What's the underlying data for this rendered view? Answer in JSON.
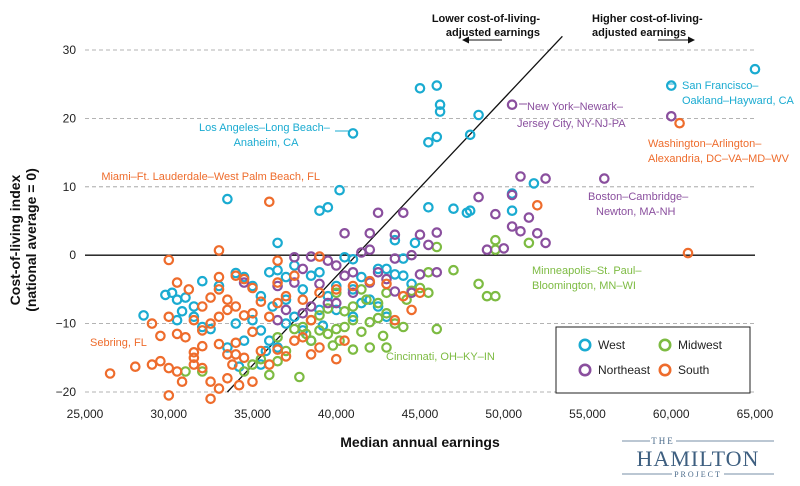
{
  "chart_data": {
    "type": "scatter",
    "xlabel": "Median annual earnings",
    "ylabel_line1": "Cost-of-living index",
    "ylabel_line2": "(national average = 0)",
    "xlim": [
      25000,
      65000
    ],
    "ylim": [
      -22,
      33
    ],
    "x_ticks": [
      25000,
      30000,
      35000,
      40000,
      45000,
      50000,
      55000,
      60000,
      65000
    ],
    "x_tick_labels": [
      "25,000",
      "30,000",
      "35,000",
      "40,000",
      "45,000",
      "50,000",
      "55,000",
      "60,000",
      "65,000"
    ],
    "y_ticks": [
      -20,
      -10,
      0,
      10,
      20,
      30
    ],
    "y_tick_labels": [
      "−20",
      "−10",
      "0",
      "10",
      "20",
      "30"
    ],
    "grid": "horizontal dashed",
    "reference_line": {
      "from": [
        33500,
        -20
      ],
      "to": [
        53500,
        32
      ]
    },
    "arrow_labels": {
      "lower_line1": "Lower cost-of-living-",
      "lower_line2": "adjusted earnings",
      "higher_line1": "Higher cost-of-living-",
      "higher_line2": "adjusted earnings"
    },
    "legend": {
      "placement": "bottom-right",
      "items": [
        {
          "name": "West",
          "color": "#1aabd1"
        },
        {
          "name": "Midwest",
          "color": "#7dbb42"
        },
        {
          "name": "Northeast",
          "color": "#8a4f9e"
        },
        {
          "name": "South",
          "color": "#ee6c2c"
        }
      ]
    },
    "annotations": [
      {
        "lines": [
          "San Francisco–",
          "Oakland–Hayward, CA"
        ],
        "color": "#1aabd1"
      },
      {
        "lines": [
          "Los Angeles–Long Beach–",
          "Anaheim, CA"
        ],
        "color": "#1aabd1"
      },
      {
        "lines": [
          "New York–Newark–",
          "Jersey City, NY-NJ-PA"
        ],
        "color": "#8a4f9e"
      },
      {
        "lines": [
          "Washington–Arlington–",
          "Alexandria, DC–VA–MD–WV"
        ],
        "color": "#ee6c2c"
      },
      {
        "lines": [
          "Miami–Ft. Lauderdale–West Palm Beach, FL"
        ],
        "color": "#ee6c2c"
      },
      {
        "lines": [
          "Boston–Cambridge–",
          "Newton, MA-NH"
        ],
        "color": "#8a4f9e"
      },
      {
        "lines": [
          "Minneapolis–St. Paul–",
          "Bloomington, MN–WI"
        ],
        "color": "#7dbb42"
      },
      {
        "lines": [
          "Sebring, FL"
        ],
        "color": "#ee6c2c"
      },
      {
        "lines": [
          "Cincinnati, OH–KY–IN"
        ],
        "color": "#7dbb42"
      }
    ],
    "series": [
      {
        "name": "West",
        "color": "#1aabd1",
        "points": [
          [
            60000,
            24.8
          ],
          [
            65000,
            27.2
          ],
          [
            41000,
            17.8
          ],
          [
            45000,
            24.4
          ],
          [
            46000,
            24.8
          ],
          [
            46200,
            22
          ],
          [
            46200,
            21
          ],
          [
            45500,
            16.5
          ],
          [
            46000,
            17.3
          ],
          [
            48000,
            17.6
          ],
          [
            48500,
            20.5
          ],
          [
            40200,
            9.5
          ],
          [
            39500,
            7
          ],
          [
            39000,
            6.5
          ],
          [
            33500,
            8.2
          ],
          [
            45500,
            7
          ],
          [
            47000,
            6.8
          ],
          [
            47800,
            6.2
          ],
          [
            48000,
            6.5
          ],
          [
            50500,
            9
          ],
          [
            50500,
            6.5
          ],
          [
            51800,
            10.5
          ],
          [
            36500,
            1.8
          ],
          [
            40500,
            -0.3
          ],
          [
            41000,
            -0.6
          ],
          [
            43500,
            2.2
          ],
          [
            44700,
            1.8
          ],
          [
            44000,
            -0.5
          ],
          [
            43000,
            -2
          ],
          [
            28500,
            -8.8
          ],
          [
            29800,
            -5.8
          ],
          [
            30200,
            -5.5
          ],
          [
            30500,
            -6.5
          ],
          [
            31000,
            -6.2
          ],
          [
            31500,
            -7.5
          ],
          [
            30800,
            -8.2
          ],
          [
            30500,
            -9.5
          ],
          [
            31500,
            -9
          ],
          [
            32000,
            -3.8
          ],
          [
            32500,
            -10.8
          ],
          [
            32000,
            -10.5
          ],
          [
            33000,
            -4.5
          ],
          [
            34000,
            -2.6
          ],
          [
            34500,
            -3.2
          ],
          [
            35000,
            -4.5
          ],
          [
            35500,
            -6
          ],
          [
            36000,
            -2.5
          ],
          [
            36500,
            -2.2
          ],
          [
            37000,
            -3.2
          ],
          [
            37500,
            -1.5
          ],
          [
            38000,
            -5
          ],
          [
            38500,
            -3
          ],
          [
            39000,
            -2.5
          ],
          [
            39500,
            -6
          ],
          [
            40000,
            -4.5
          ],
          [
            41000,
            -5
          ],
          [
            41500,
            -3.2
          ],
          [
            42000,
            -6.5
          ],
          [
            42500,
            -2
          ],
          [
            43500,
            -2.8
          ],
          [
            44000,
            -3
          ],
          [
            44500,
            -4.2
          ],
          [
            35000,
            -9.5
          ],
          [
            35500,
            -11
          ],
          [
            36000,
            -12.5
          ],
          [
            36500,
            -13.5
          ],
          [
            35800,
            -14
          ],
          [
            37000,
            -10
          ],
          [
            37500,
            -9
          ],
          [
            38000,
            -11
          ],
          [
            38500,
            -12.5
          ],
          [
            39200,
            -10.3
          ],
          [
            40000,
            -8
          ],
          [
            41000,
            -9
          ],
          [
            41500,
            -7
          ],
          [
            42500,
            -7.5
          ],
          [
            43000,
            -9
          ],
          [
            34000,
            -10
          ],
          [
            33500,
            -13.5
          ],
          [
            34200,
            -16.3
          ],
          [
            35500,
            -16
          ],
          [
            34500,
            -12.5
          ],
          [
            39000,
            -8
          ],
          [
            37000,
            -6.5
          ],
          [
            36200,
            -7.5
          ]
        ]
      },
      {
        "name": "Midwest",
        "color": "#7dbb42",
        "points": [
          [
            51500,
            1.8
          ],
          [
            49500,
            2.2
          ],
          [
            49500,
            0.8
          ],
          [
            46000,
            1.2
          ],
          [
            45500,
            -2.5
          ],
          [
            47000,
            -2.2
          ],
          [
            48500,
            -4.2
          ],
          [
            49000,
            -6
          ],
          [
            49500,
            -6
          ],
          [
            46000,
            -10.8
          ],
          [
            31000,
            -17
          ],
          [
            32000,
            -17
          ],
          [
            34500,
            -17
          ],
          [
            36000,
            -17.5
          ],
          [
            37800,
            -17.8
          ],
          [
            35000,
            -16
          ],
          [
            35500,
            -15.2
          ],
          [
            36500,
            -15.5
          ],
          [
            37000,
            -14
          ],
          [
            38500,
            -12.5
          ],
          [
            39000,
            -11
          ],
          [
            39500,
            -11.5
          ],
          [
            40000,
            -10.8
          ],
          [
            40500,
            -10.5
          ],
          [
            41500,
            -11.2
          ],
          [
            40200,
            -12.5
          ],
          [
            39800,
            -13.2
          ],
          [
            41000,
            -13.8
          ],
          [
            42000,
            -13.5
          ],
          [
            43000,
            -13.5
          ],
          [
            43500,
            -10
          ],
          [
            44000,
            -10.5
          ],
          [
            41000,
            -9.5
          ],
          [
            42000,
            -9.8
          ],
          [
            42500,
            -9.2
          ],
          [
            43000,
            -8.5
          ],
          [
            42500,
            -7
          ],
          [
            41800,
            -6.5
          ],
          [
            41000,
            -7.5
          ],
          [
            40500,
            -8.2
          ],
          [
            39500,
            -7.8
          ],
          [
            38500,
            -9.5
          ],
          [
            38000,
            -10.5
          ],
          [
            37500,
            -10.8
          ],
          [
            38200,
            -11.5
          ],
          [
            40000,
            -5.5
          ],
          [
            41500,
            -5
          ],
          [
            43000,
            -5.5
          ],
          [
            44500,
            -5.2
          ],
          [
            45000,
            -4.8
          ],
          [
            45500,
            -5.5
          ],
          [
            44200,
            -6.5
          ],
          [
            36500,
            -12
          ],
          [
            39000,
            -8.8
          ],
          [
            42800,
            -11.8
          ]
        ]
      },
      {
        "name": "Northeast",
        "color": "#8a4f9e",
        "points": [
          [
            50500,
            22
          ],
          [
            60000,
            20.3
          ],
          [
            56000,
            11.2
          ],
          [
            51000,
            11.5
          ],
          [
            52500,
            11.2
          ],
          [
            50500,
            8.8
          ],
          [
            48500,
            8.5
          ],
          [
            49500,
            6
          ],
          [
            51500,
            5.5
          ],
          [
            50500,
            4.2
          ],
          [
            51000,
            3.5
          ],
          [
            52000,
            3.2
          ],
          [
            52500,
            1.8
          ],
          [
            50000,
            1
          ],
          [
            49000,
            0.8
          ],
          [
            42500,
            6.2
          ],
          [
            44000,
            6.2
          ],
          [
            40500,
            3.2
          ],
          [
            42000,
            3.2
          ],
          [
            43500,
            3
          ],
          [
            45000,
            3
          ],
          [
            46000,
            3.3
          ],
          [
            45500,
            1.5
          ],
          [
            44500,
            0
          ],
          [
            43500,
            -0.5
          ],
          [
            42000,
            0.8
          ],
          [
            41500,
            0.4
          ],
          [
            37500,
            -0.3
          ],
          [
            38500,
            -0.2
          ],
          [
            39500,
            -0.8
          ],
          [
            40000,
            -1.5
          ],
          [
            40500,
            -3
          ],
          [
            41000,
            -2.5
          ],
          [
            42000,
            -4
          ],
          [
            43000,
            -3.5
          ],
          [
            43500,
            -5.3
          ],
          [
            44500,
            -5.5
          ],
          [
            45000,
            -2.8
          ],
          [
            46000,
            -2.5
          ],
          [
            42500,
            -2.5
          ],
          [
            38000,
            -2
          ],
          [
            39000,
            -4.2
          ],
          [
            37500,
            -4
          ],
          [
            36500,
            -4.5
          ],
          [
            39500,
            -7
          ],
          [
            38500,
            -7.5
          ],
          [
            37000,
            -8
          ],
          [
            36500,
            -9.5
          ],
          [
            38000,
            -8.5
          ],
          [
            40000,
            -7
          ],
          [
            41000,
            -5.5
          ],
          [
            34500,
            -4
          ]
        ]
      },
      {
        "name": "South",
        "color": "#ee6c2c",
        "points": [
          [
            60500,
            19.3
          ],
          [
            61000,
            0.3
          ],
          [
            36000,
            7.8
          ],
          [
            52000,
            7.3
          ],
          [
            33000,
            0.7
          ],
          [
            30000,
            -0.7
          ],
          [
            34500,
            -3.5
          ],
          [
            36500,
            -0.8
          ],
          [
            39000,
            -0.2
          ],
          [
            26500,
            -17.3
          ],
          [
            28000,
            -16.3
          ],
          [
            29000,
            -16
          ],
          [
            29500,
            -15.5
          ],
          [
            30000,
            -16.5
          ],
          [
            30500,
            -17
          ],
          [
            30800,
            -18.5
          ],
          [
            30000,
            -20.5
          ],
          [
            31500,
            -16
          ],
          [
            31500,
            -15
          ],
          [
            32000,
            -16.5
          ],
          [
            32500,
            -18.5
          ],
          [
            33500,
            -18
          ],
          [
            32500,
            -21
          ],
          [
            33000,
            -19.5
          ],
          [
            33800,
            -16
          ],
          [
            34200,
            -19
          ],
          [
            35000,
            -18.5
          ],
          [
            34500,
            -15
          ],
          [
            34000,
            -14.5
          ],
          [
            31500,
            -14.2
          ],
          [
            32000,
            -13.3
          ],
          [
            33000,
            -13
          ],
          [
            33500,
            -14.5
          ],
          [
            34000,
            -12.8
          ],
          [
            35000,
            -11.2
          ],
          [
            35500,
            -14
          ],
          [
            36000,
            -16
          ],
          [
            36500,
            -13.8
          ],
          [
            37000,
            -14.8
          ],
          [
            37500,
            -12.5
          ],
          [
            38000,
            -12
          ],
          [
            38500,
            -14.5
          ],
          [
            39000,
            -13.5
          ],
          [
            40000,
            -15.2
          ],
          [
            40500,
            -12.5
          ],
          [
            29500,
            -11.8
          ],
          [
            30500,
            -11.5
          ],
          [
            31000,
            -12
          ],
          [
            32000,
            -11
          ],
          [
            32500,
            -10
          ],
          [
            33000,
            -9
          ],
          [
            33500,
            -8
          ],
          [
            34000,
            -7.5
          ],
          [
            35000,
            -8.5
          ],
          [
            36000,
            -9
          ],
          [
            36500,
            -7
          ],
          [
            37000,
            -6
          ],
          [
            38000,
            -6.5
          ],
          [
            39000,
            -5.5
          ],
          [
            40000,
            -5
          ],
          [
            41000,
            -4.5
          ],
          [
            42000,
            -3.8
          ],
          [
            43000,
            -4.2
          ],
          [
            44000,
            -6
          ],
          [
            45000,
            -5.5
          ],
          [
            44500,
            -8
          ],
          [
            43500,
            -9.5
          ],
          [
            29000,
            -10
          ],
          [
            30000,
            -9
          ],
          [
            31500,
            -9.5
          ],
          [
            33000,
            -5
          ],
          [
            32000,
            -7.5
          ],
          [
            32500,
            -6.2
          ],
          [
            33500,
            -6.5
          ],
          [
            34500,
            -8.8
          ],
          [
            35500,
            -6.8
          ],
          [
            36500,
            -4
          ],
          [
            37500,
            -3
          ],
          [
            35000,
            -4.8
          ],
          [
            34000,
            -3
          ],
          [
            33000,
            -3.2
          ],
          [
            31200,
            -5
          ],
          [
            30500,
            -4
          ],
          [
            38500,
            -9.5
          ]
        ]
      }
    ]
  },
  "logo": {
    "line1": "THE",
    "line2": "HAMILTON",
    "line3": "PROJECT"
  }
}
